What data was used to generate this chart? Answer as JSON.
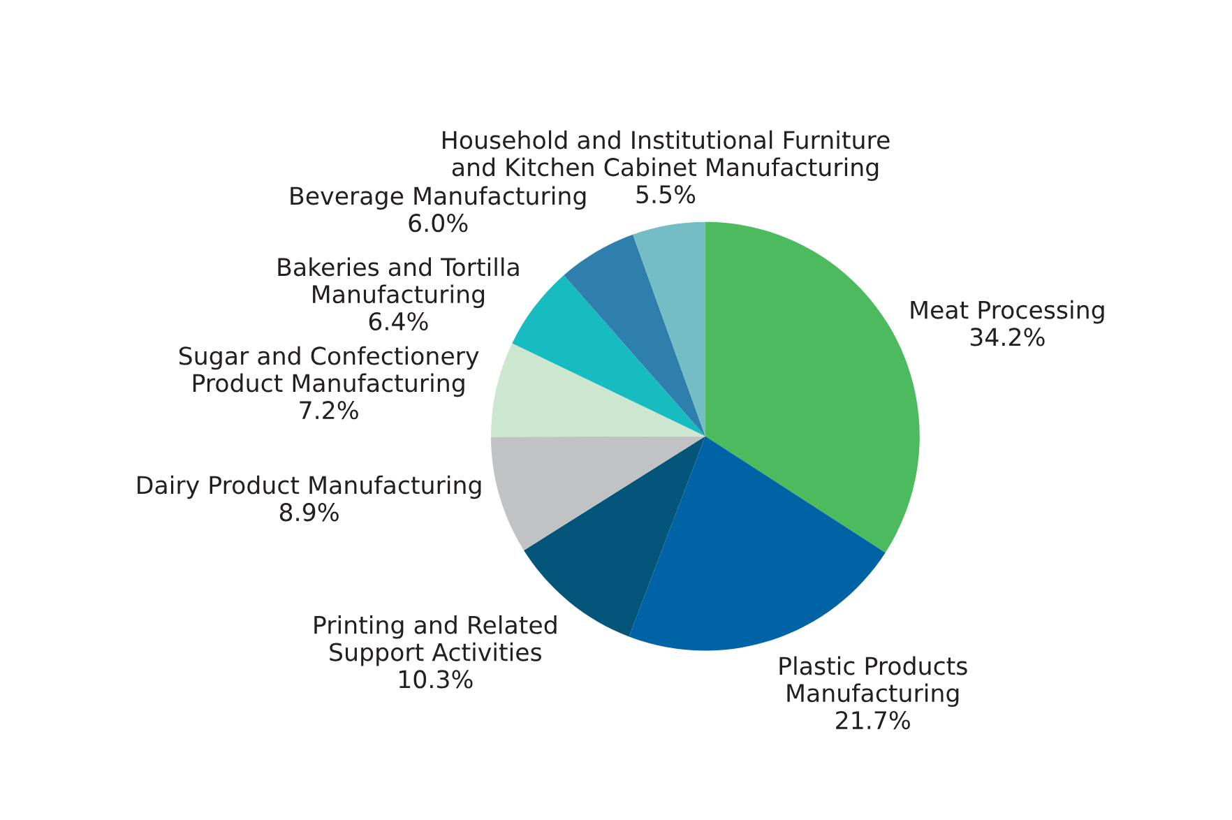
{
  "chart_data": {
    "type": "pie",
    "categories": [
      "Meat Processing",
      "Plastic Products\nManufacturing",
      "Printing and Related\nSupport Activities",
      "Dairy Product Manufacturing",
      "Sugar and Confectionery\nProduct Manufacturing",
      "Bakeries and Tortilla\nManufacturing",
      "Beverage Manufacturing",
      "Household and Institutional Furniture\nand Kitchen Cabinet Manufacturing"
    ],
    "values": [
      34.2,
      21.7,
      10.3,
      8.9,
      7.2,
      6.4,
      6.0,
      5.5
    ],
    "value_labels": [
      "34.2%",
      "21.7%",
      "10.3%",
      "8.9%",
      "7.2%",
      "6.4%",
      "6.0%",
      "5.5%"
    ],
    "colors": [
      "#4cbb5e",
      "#0063a6",
      "#03557a",
      "#c0c2c4",
      "#cce6d0",
      "#17bcc0",
      "#2f7fad",
      "#74bdc4"
    ],
    "legend": false
  }
}
